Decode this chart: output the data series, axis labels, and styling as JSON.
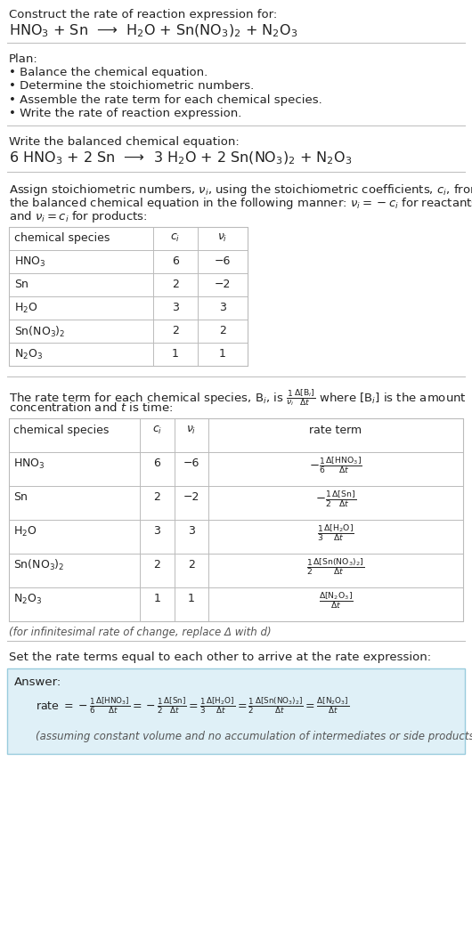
{
  "title_line1": "Construct the rate of reaction expression for:",
  "title_line2": "HNO$_3$ + Sn  ⟶  H$_2$O + Sn(NO$_3$)$_2$ + N$_2$O$_3$",
  "plan_header": "Plan:",
  "plan_items": [
    "• Balance the chemical equation.",
    "• Determine the stoichiometric numbers.",
    "• Assemble the rate term for each chemical species.",
    "• Write the rate of reaction expression."
  ],
  "balanced_header": "Write the balanced chemical equation:",
  "balanced_eq": "6 HNO$_3$ + 2 Sn  ⟶  3 H$_2$O + 2 Sn(NO$_3$)$_2$ + N$_2$O$_3$",
  "stoich_header1": "Assign stoichiometric numbers, $\\nu_i$, using the stoichiometric coefficients, $c_i$, from",
  "stoich_header2": "the balanced chemical equation in the following manner: $\\nu_i = -c_i$ for reactants",
  "stoich_header3": "and $\\nu_i = c_i$ for products:",
  "table1_col0": "chemical species",
  "table1_col1": "$c_i$",
  "table1_col2": "$\\nu_i$",
  "table1_rows": [
    [
      "HNO$_3$",
      "6",
      "−6"
    ],
    [
      "Sn",
      "2",
      "−2"
    ],
    [
      "H$_2$O",
      "3",
      "3"
    ],
    [
      "Sn(NO$_3$)$_2$",
      "2",
      "2"
    ],
    [
      "N$_2$O$_3$",
      "1",
      "1"
    ]
  ],
  "rate_header1": "The rate term for each chemical species, B$_i$, is $\\frac{1}{\\nu_i}\\frac{\\Delta[\\mathrm{B}_i]}{\\Delta t}$ where [B$_i$] is the amount",
  "rate_header2": "concentration and $t$ is time:",
  "table2_col0": "chemical species",
  "table2_col1": "$c_i$",
  "table2_col2": "$\\nu_i$",
  "table2_col3": "rate term",
  "table2_rows": [
    [
      "HNO$_3$",
      "6",
      "−6",
      "$-\\frac{1}{6}\\frac{\\Delta[\\mathrm{HNO_3}]}{\\Delta t}$"
    ],
    [
      "Sn",
      "2",
      "−2",
      "$-\\frac{1}{2}\\frac{\\Delta[\\mathrm{Sn}]}{\\Delta t}$"
    ],
    [
      "H$_2$O",
      "3",
      "3",
      "$\\frac{1}{3}\\frac{\\Delta[\\mathrm{H_2O}]}{\\Delta t}$"
    ],
    [
      "Sn(NO$_3$)$_2$",
      "2",
      "2",
      "$\\frac{1}{2}\\frac{\\Delta[\\mathrm{Sn(NO_3)_2}]}{\\Delta t}$"
    ],
    [
      "N$_2$O$_3$",
      "1",
      "1",
      "$\\frac{\\Delta[\\mathrm{N_2O_3}]}{\\Delta t}$"
    ]
  ],
  "infinitesimal_note": "(for infinitesimal rate of change, replace Δ with d)",
  "set_equal_header": "Set the rate terms equal to each other to arrive at the rate expression:",
  "answer_label": "Answer:",
  "rate_expr1": "rate $= -\\frac{1}{6}\\frac{\\Delta[\\mathrm{HNO_3}]}{\\Delta t} = -\\frac{1}{2}\\frac{\\Delta[\\mathrm{Sn}]}{\\Delta t} = \\frac{1}{3}\\frac{\\Delta[\\mathrm{H_2O}]}{\\Delta t} = \\frac{1}{2}\\frac{\\Delta[\\mathrm{Sn(NO_3)_2}]}{\\Delta t} = \\frac{\\Delta[\\mathrm{N_2O_3}]}{\\Delta t}$",
  "answer_note": "(assuming constant volume and no accumulation of intermediates or side products)",
  "bg_color": "#ffffff",
  "answer_bg": "#dff0f7",
  "border_color": "#bbbbbb",
  "text_color": "#222222",
  "gray_color": "#555555"
}
